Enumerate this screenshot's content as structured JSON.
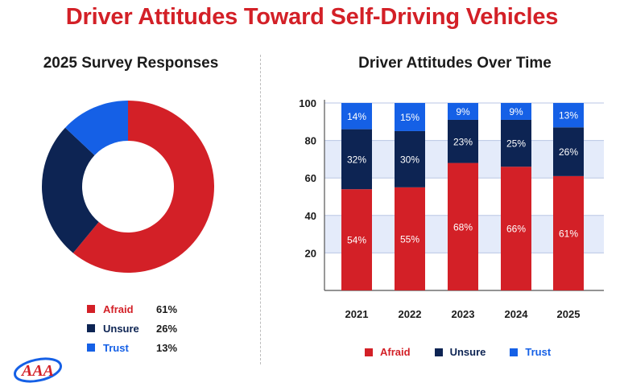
{
  "title": "Driver Attitudes Toward Self-Driving Vehicles",
  "colors": {
    "afraid": "#d32027",
    "unsure": "#0d2453",
    "trust": "#1560e6",
    "band": "#e4ebfa"
  },
  "chart_data": [
    {
      "type": "pie",
      "title": "2025 Survey Responses",
      "labels": [
        "Afraid",
        "Unsure",
        "Trust"
      ],
      "values": [
        61,
        26,
        13
      ],
      "value_labels": [
        "61%",
        "26%",
        "13%"
      ],
      "legend_position": "bottom"
    },
    {
      "type": "bar",
      "stacked": true,
      "title": "Driver Attitudes Over Time",
      "categories": [
        "2021",
        "2022",
        "2023",
        "2024",
        "2025"
      ],
      "series": [
        {
          "name": "Afraid",
          "values": [
            54,
            55,
            68,
            66,
            61
          ]
        },
        {
          "name": "Unsure",
          "values": [
            32,
            30,
            23,
            25,
            26
          ]
        },
        {
          "name": "Trust",
          "values": [
            14,
            15,
            9,
            9,
            13
          ]
        }
      ],
      "ylim": [
        0,
        100
      ],
      "yticks": [
        20,
        40,
        60,
        80,
        100
      ],
      "xlabel": "",
      "ylabel": "",
      "legend_position": "bottom"
    }
  ],
  "logo": {
    "text": "AAA"
  }
}
